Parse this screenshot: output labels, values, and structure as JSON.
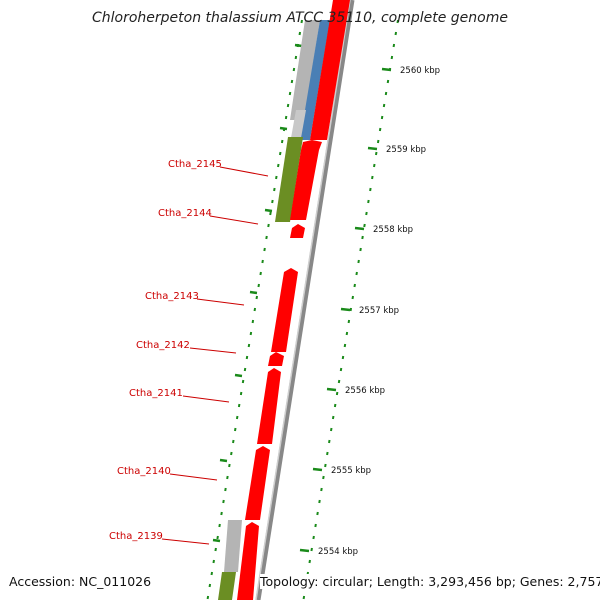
{
  "title": "Chloroherpeton thalassium ATCC 35110, complete genome",
  "footer": {
    "accession": "Accession: NC_011026",
    "summary": "Topology: circular; Length: 3,293,456 bp; Genes: 2,757"
  },
  "colors": {
    "gene_red": "#ff0000",
    "gene_blue": "#4a7fb5",
    "gene_gray": "#b4b4b4",
    "gene_green": "#6b8e23",
    "tick_green": "#1a8a1a",
    "label_red": "#cc0000",
    "backbone": "#888888"
  },
  "scale_ticks": [
    {
      "label": "2560 kbp"
    },
    {
      "label": "2559 kbp"
    },
    {
      "label": "2558 kbp"
    },
    {
      "label": "2557 kbp"
    },
    {
      "label": "2556 kbp"
    },
    {
      "label": "2555 kbp"
    },
    {
      "label": "2554 kbp"
    }
  ],
  "gene_labels": [
    {
      "name": "Ctha_2145"
    },
    {
      "name": "Ctha_2144"
    },
    {
      "name": "Ctha_2143"
    },
    {
      "name": "Ctha_2142"
    },
    {
      "name": "Ctha_2141"
    },
    {
      "name": "Ctha_2140"
    },
    {
      "name": "Ctha_2139"
    }
  ]
}
